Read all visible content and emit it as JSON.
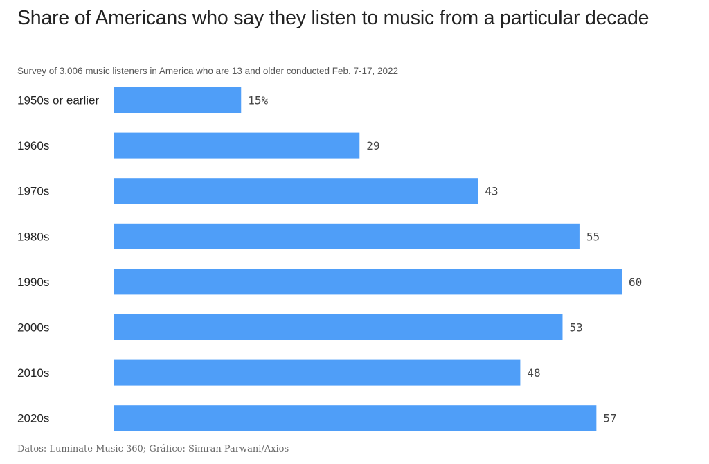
{
  "header": {
    "title": "Share of Americans who say they listen to music from a particular decade",
    "subtitle": "Survey of 3,006 music listeners in America who are 13 and older conducted Feb. 7-17, 2022"
  },
  "footer": {
    "source": "Datos: Luminate Music 360; Gráfico: Simran Parwani/Axios"
  },
  "colors": {
    "bar": "#4f9ef8"
  },
  "chart_data": {
    "type": "bar",
    "orientation": "horizontal",
    "title": "Share of Americans who say they listen to music from a particular decade",
    "categories": [
      "1950s or earlier",
      "1960s",
      "1970s",
      "1980s",
      "1990s",
      "2000s",
      "2010s",
      "2020s"
    ],
    "values": [
      15,
      29,
      43,
      55,
      60,
      53,
      48,
      57
    ],
    "value_labels": [
      "15%",
      "29",
      "43",
      "55",
      "60",
      "53",
      "48",
      "57"
    ],
    "xlim": [
      0,
      60
    ],
    "xlabel": "",
    "ylabel": "",
    "grid": false,
    "legend": "none"
  }
}
